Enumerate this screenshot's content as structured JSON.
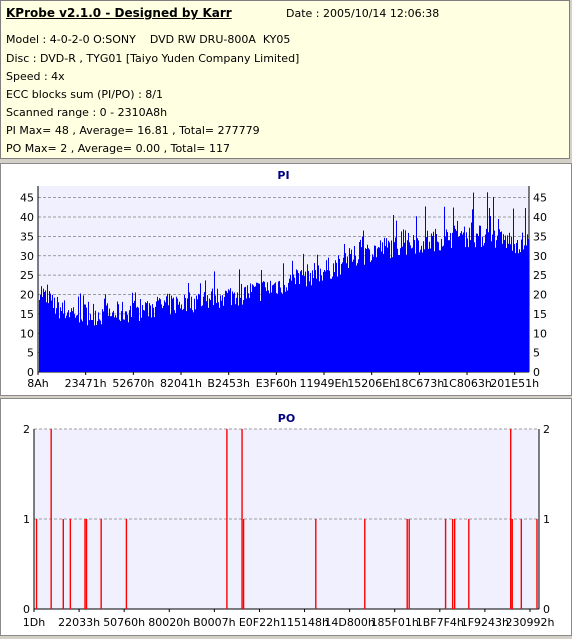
{
  "info": {
    "title": "KProbe v2.1.0 - Designed by Karr",
    "date": "Date : 2005/10/14 12:06:38",
    "lines": [
      "Model : 4-0-2-0 O:SONY    DVD RW DRU-800A  KY05",
      "Disc : DVD-R , TYG01 [Taiyo Yuden Company Limited]",
      "Speed : 4x",
      "ECC blocks sum (PI/PO) : 8/1",
      "Scanned range : 0 - 2310A8h",
      "PI Max= 48 , Average= 16.81 , Total= 277779",
      "PO Max= 2 , Average= 0.00 , Total= 117"
    ]
  },
  "colors": {
    "info_bg": "#ffffe1",
    "plot_bg": "#f0f0ff",
    "pi_bar": "#0000ff",
    "po_bar": "#ff0000",
    "title_text": "#000080",
    "grid": "#808080"
  },
  "chart_data": [
    {
      "type": "bar",
      "title": "PI",
      "ylim": [
        0,
        48
      ],
      "yticks": [
        0,
        5,
        10,
        15,
        20,
        25,
        30,
        35,
        40,
        45
      ],
      "xticks": [
        "8Ah",
        "23471h",
        "52670h",
        "82041h",
        "B2453h",
        "E3F60h",
        "11949Eh",
        "15206Eh",
        "18C673h",
        "1C8063h",
        "201E51h"
      ],
      "grid": true,
      "max": 48,
      "average": 16.81,
      "profile": {
        "x_fraction": [
          0.0,
          0.02,
          0.05,
          0.1,
          0.15,
          0.2,
          0.25,
          0.3,
          0.35,
          0.4,
          0.45,
          0.5,
          0.55,
          0.6,
          0.65,
          0.7,
          0.75,
          0.8,
          0.85,
          0.9,
          0.95,
          1.0
        ],
        "typical": [
          22,
          18,
          16,
          15,
          15,
          16,
          17,
          18,
          19,
          20,
          21,
          23,
          25,
          27,
          30,
          32,
          33,
          34,
          35,
          35,
          34,
          33
        ],
        "peak": [
          30,
          24,
          21,
          20,
          21,
          22,
          23,
          25,
          26,
          28,
          30,
          31,
          33,
          35,
          37,
          40,
          42,
          44,
          46,
          48,
          46,
          44
        ]
      }
    },
    {
      "type": "bar",
      "title": "PO",
      "ylim": [
        0,
        2
      ],
      "yticks": [
        0,
        1,
        2
      ],
      "xticks": [
        "1Dh",
        "22033h",
        "50760h",
        "80020h",
        "B0007h",
        "E0F22h",
        "115148h",
        "14D800h",
        "185F01h",
        "1BF7F4h",
        "1F9243h",
        "230992h"
      ],
      "grid": true,
      "spikes": [
        {
          "x_fraction": 0.005,
          "value": 1
        },
        {
          "x_fraction": 0.034,
          "value": 2
        },
        {
          "x_fraction": 0.058,
          "value": 1
        },
        {
          "x_fraction": 0.072,
          "value": 1
        },
        {
          "x_fraction": 0.101,
          "value": 1
        },
        {
          "x_fraction": 0.104,
          "value": 1
        },
        {
          "x_fraction": 0.133,
          "value": 1
        },
        {
          "x_fraction": 0.183,
          "value": 1
        },
        {
          "x_fraction": 0.382,
          "value": 2
        },
        {
          "x_fraction": 0.412,
          "value": 2
        },
        {
          "x_fraction": 0.415,
          "value": 1
        },
        {
          "x_fraction": 0.558,
          "value": 1
        },
        {
          "x_fraction": 0.655,
          "value": 1
        },
        {
          "x_fraction": 0.739,
          "value": 1
        },
        {
          "x_fraction": 0.743,
          "value": 1
        },
        {
          "x_fraction": 0.815,
          "value": 1
        },
        {
          "x_fraction": 0.829,
          "value": 1
        },
        {
          "x_fraction": 0.833,
          "value": 1
        },
        {
          "x_fraction": 0.861,
          "value": 1
        },
        {
          "x_fraction": 0.944,
          "value": 2
        },
        {
          "x_fraction": 0.947,
          "value": 1
        },
        {
          "x_fraction": 0.965,
          "value": 1
        },
        {
          "x_fraction": 0.996,
          "value": 1
        }
      ]
    }
  ]
}
